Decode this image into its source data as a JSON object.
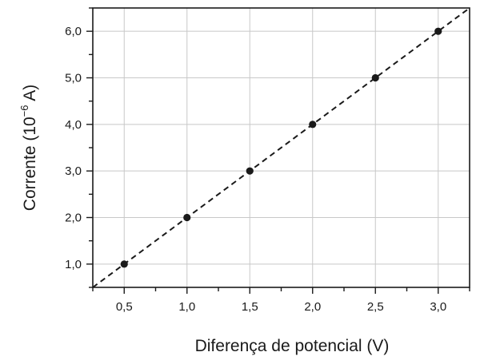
{
  "chart_data": {
    "type": "scatter",
    "xlabel": "Diferença de potencial (V)",
    "ylabel_main": "Corrente (10",
    "ylabel_exp": "−6",
    "ylabel_unit": " A)",
    "xlim": [
      0.25,
      3.25
    ],
    "ylim": [
      0.5,
      6.5
    ],
    "x_ticks": [
      0.5,
      1.0,
      1.5,
      2.0,
      2.5,
      3.0
    ],
    "x_tick_labels": [
      "0,5",
      "1,0",
      "1,5",
      "2,0",
      "2,5",
      "3,0"
    ],
    "y_ticks": [
      1.0,
      2.0,
      3.0,
      4.0,
      5.0,
      6.0
    ],
    "y_tick_labels": [
      "1,0",
      "2,0",
      "3,0",
      "4,0",
      "5,0",
      "6,0"
    ],
    "grid": true,
    "series": [
      {
        "x": [
          0.5,
          1.0,
          1.5,
          2.0,
          2.5,
          3.0
        ],
        "y": [
          1.0,
          2.0,
          3.0,
          4.0,
          5.0,
          6.0
        ],
        "marker": "circle",
        "color": "#1a1a1a"
      }
    ],
    "fit_line": {
      "style": "dashed",
      "slope": 2.0,
      "intercept": 0.0,
      "color": "#1a1a1a"
    }
  }
}
